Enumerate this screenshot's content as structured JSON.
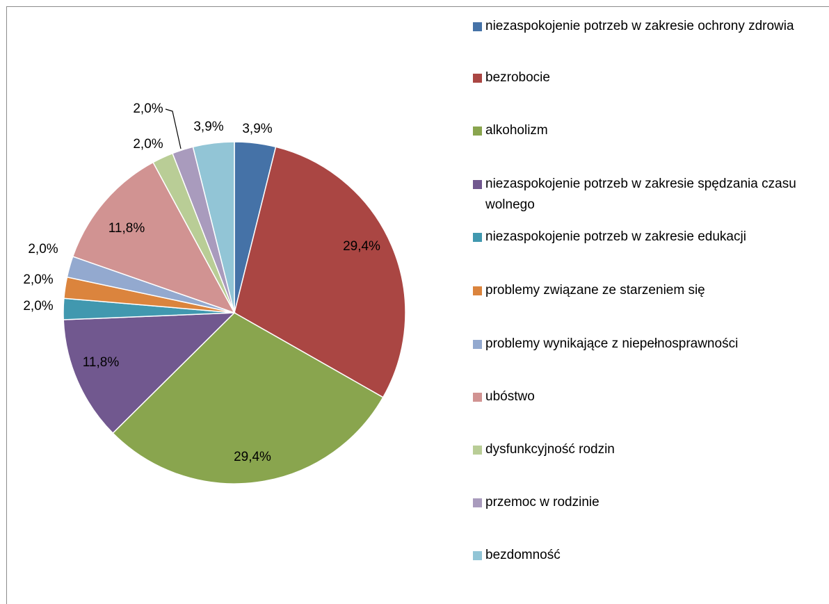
{
  "chart_data": {
    "type": "pie",
    "categories": [
      "niezaspokojenie potrzeb w zakresie ochrony zdrowia",
      "bezrobocie",
      "alkoholizm",
      "niezaspokojenie potrzeb w zakresie spędzania czasu wolnego",
      "niezaspokojenie potrzeb w zakresie edukacji",
      "problemy związane ze starzeniem się",
      "problemy wynikające z niepełnosprawności",
      "ubóstwo",
      "dysfunkcyjność rodzin",
      "przemoc w rodzinie",
      "bezdomność"
    ],
    "values": [
      3.9,
      29.4,
      29.4,
      11.8,
      2.0,
      2.0,
      2.0,
      11.8,
      2.0,
      2.0,
      3.9
    ],
    "value_labels": [
      "3,9%",
      "29,4%",
      "29,4%",
      "11,8%",
      "2,0%",
      "2,0%",
      "2,0%",
      "11,8%",
      "2,0%",
      "2,0%",
      "3,9%"
    ],
    "colors": [
      "#4572a7",
      "#aa4643",
      "#89a54e",
      "#71588f",
      "#4198af",
      "#db843d",
      "#93a9cf",
      "#d19392",
      "#b9cd96",
      "#a99bbd",
      "#92c5d6"
    ],
    "legend": "right"
  }
}
